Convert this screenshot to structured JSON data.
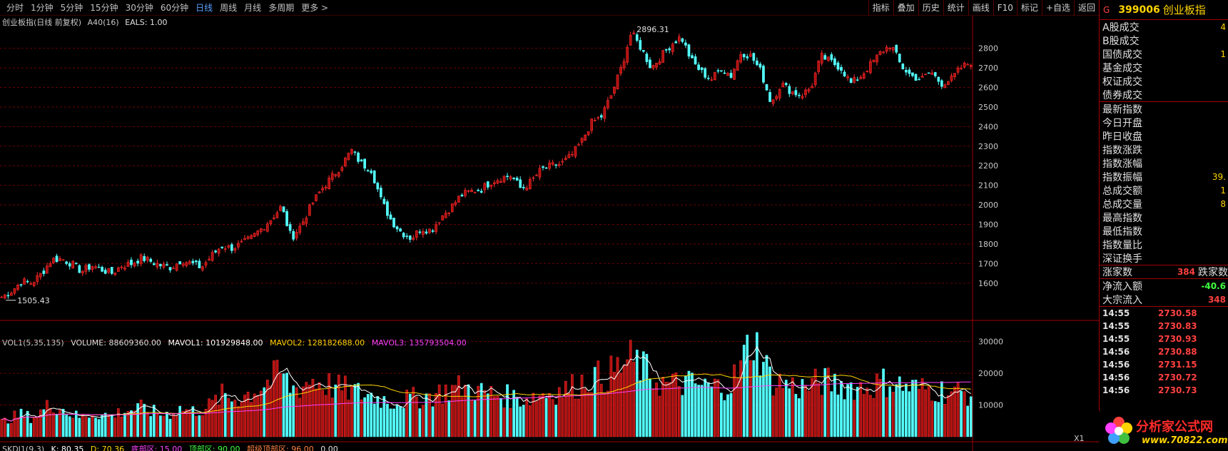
{
  "toolbar": {
    "periods": [
      "分时",
      "1分钟",
      "5分钟",
      "15分钟",
      "30分钟",
      "60分钟",
      "日线",
      "周线",
      "月线",
      "多周期",
      "更多 >"
    ],
    "active_period": "日线",
    "tools": [
      "指标",
      "叠加",
      "历史",
      "统计",
      "画线",
      "F10",
      "标记",
      "+自选",
      "返回"
    ]
  },
  "main_legend": {
    "title": "创业板指(日线 前复权)",
    "indicator": "A40(16)",
    "eals": "EALS: 1.00"
  },
  "vol_legend": {
    "name": "VOL1(5,35,135)",
    "volume": "VOLUME: 88609360.00",
    "mavol1": "MAVOL1: 101929848.00",
    "mavol2": "MAVOL2: 128182688.00",
    "mavol3": "MAVOL3: 135793504.00"
  },
  "sk_legend": {
    "name": "SKDJ1(9,3)",
    "k": "K: 80.35",
    "d": "D: 70.36",
    "bottom": "底部区: 15.00",
    "top": "顶部区: 90.00",
    "supertop": "超级顶部区: 96.00",
    "tail": "0.00"
  },
  "annotations": {
    "high": "2896.31",
    "low": "1505.43"
  },
  "x_label": "X1",
  "colors": {
    "up": "#ff3030",
    "down": "#54ffff",
    "ma1": "#ffffff",
    "ma2": "#ffd400",
    "ma3": "#ff40ff",
    "grid": "#6a0000"
  },
  "right_panel": {
    "g_label": "G",
    "code": "399006",
    "name": "创业板指",
    "rows": [
      {
        "label": "A股成交",
        "value": "4"
      },
      {
        "label": "B股成交",
        "value": ""
      },
      {
        "label": "国债成交",
        "value": "1"
      },
      {
        "label": "基金成交",
        "value": ""
      },
      {
        "label": "权证成交",
        "value": ""
      },
      {
        "label": "债券成交",
        "value": ""
      }
    ],
    "rows2": [
      {
        "label": "最新指数",
        "value": ""
      },
      {
        "label": "今日开盘",
        "value": ""
      },
      {
        "label": "昨日收盘",
        "value": ""
      },
      {
        "label": "指数涨跌",
        "value": ""
      },
      {
        "label": "指数涨幅",
        "value": ""
      },
      {
        "label": "指数振幅",
        "value": "39."
      },
      {
        "label": "总成交额",
        "value": "1"
      },
      {
        "label": "总成交量",
        "value": "8"
      },
      {
        "label": "最高指数",
        "value": ""
      },
      {
        "label": "最低指数",
        "value": ""
      },
      {
        "label": "指数量比",
        "value": ""
      },
      {
        "label": "深证换手",
        "value": ""
      }
    ],
    "updown": {
      "label": "涨家数",
      "value": "384",
      "label2": "跌家数"
    },
    "flow": [
      {
        "label": "净流入额",
        "value": "-40.6"
      },
      {
        "label": "大宗流入",
        "value": "348"
      }
    ],
    "ticks": [
      {
        "time": "14:55",
        "price": "2730.58"
      },
      {
        "time": "14:55",
        "price": "2730.83"
      },
      {
        "time": "14:55",
        "price": "2730.93"
      },
      {
        "time": "14:56",
        "price": "2730.88"
      },
      {
        "time": "14:56",
        "price": "2731.15"
      },
      {
        "time": "14:56",
        "price": "2730.72"
      },
      {
        "time": "14:56",
        "price": "2730.73"
      }
    ],
    "logo_text": "分析家公式网",
    "logo_url": "www.70822.com"
  },
  "chart_data": {
    "type": "candlestick",
    "price_axis": {
      "ticks": [
        1600,
        1700,
        1800,
        1900,
        2000,
        2100,
        2200,
        2300,
        2400,
        2500,
        2600,
        2700,
        2800
      ],
      "ylim": [
        1490,
        2930
      ]
    },
    "volume_axis": {
      "ticks": [
        10000,
        20000,
        30000
      ],
      "ylim": [
        0,
        36000
      ]
    },
    "anchors": [
      1530,
      1560,
      1610,
      1600,
      1650,
      1720,
      1725,
      1700,
      1660,
      1690,
      1670,
      1650,
      1690,
      1700,
      1730,
      1710,
      1690,
      1680,
      1720,
      1700,
      1680,
      1740,
      1790,
      1780,
      1800,
      1830,
      1880,
      1930,
      1990,
      1830,
      1900,
      2000,
      2080,
      2140,
      2200,
      2280,
      2210,
      2180,
      2020,
      1920,
      1860,
      1830,
      1880,
      1870,
      1940,
      1990,
      2050,
      2070,
      2080,
      2120,
      2140,
      2150,
      2080,
      2120,
      2180,
      2200,
      2210,
      2250,
      2320,
      2420,
      2450,
      2560,
      2700,
      2880,
      2800,
      2700,
      2760,
      2820,
      2860,
      2740,
      2680,
      2640,
      2700,
      2660,
      2780,
      2760,
      2680,
      2520,
      2620,
      2580,
      2560,
      2600,
      2760,
      2730,
      2700,
      2620,
      2660,
      2720,
      2780,
      2820,
      2710,
      2660,
      2640,
      2680,
      2620,
      2640,
      2700,
      2730
    ],
    "volume_anchors": [
      4500,
      6000,
      7000,
      6000,
      8000,
      10500,
      9000,
      7000,
      6000,
      7500,
      7000,
      6500,
      8000,
      8500,
      9000,
      8000,
      7000,
      7500,
      9000,
      8000,
      8500,
      10000,
      13000,
      12000,
      12500,
      14000,
      16000,
      18000,
      20000,
      15000,
      16000,
      18000,
      17000,
      16000,
      15000,
      14500,
      13500,
      13000,
      12000,
      11000,
      11500,
      12000,
      12500,
      13000,
      14000,
      15000,
      15500,
      15000,
      14000,
      13500,
      13000,
      12500,
      12000,
      12500,
      13500,
      14000,
      14500,
      15500,
      17000,
      19000,
      18500,
      20000,
      22000,
      24000,
      22000,
      19000,
      17000,
      16000,
      17000,
      16500,
      16000,
      15500,
      16000,
      17000,
      22000,
      31000,
      26000,
      18000,
      17000,
      16000,
      15500,
      16000,
      17500,
      17000,
      16500,
      16000,
      15500,
      16000,
      17000,
      17500,
      16000,
      15500,
      15000,
      15000,
      14500,
      14000,
      13800,
      13500
    ]
  }
}
